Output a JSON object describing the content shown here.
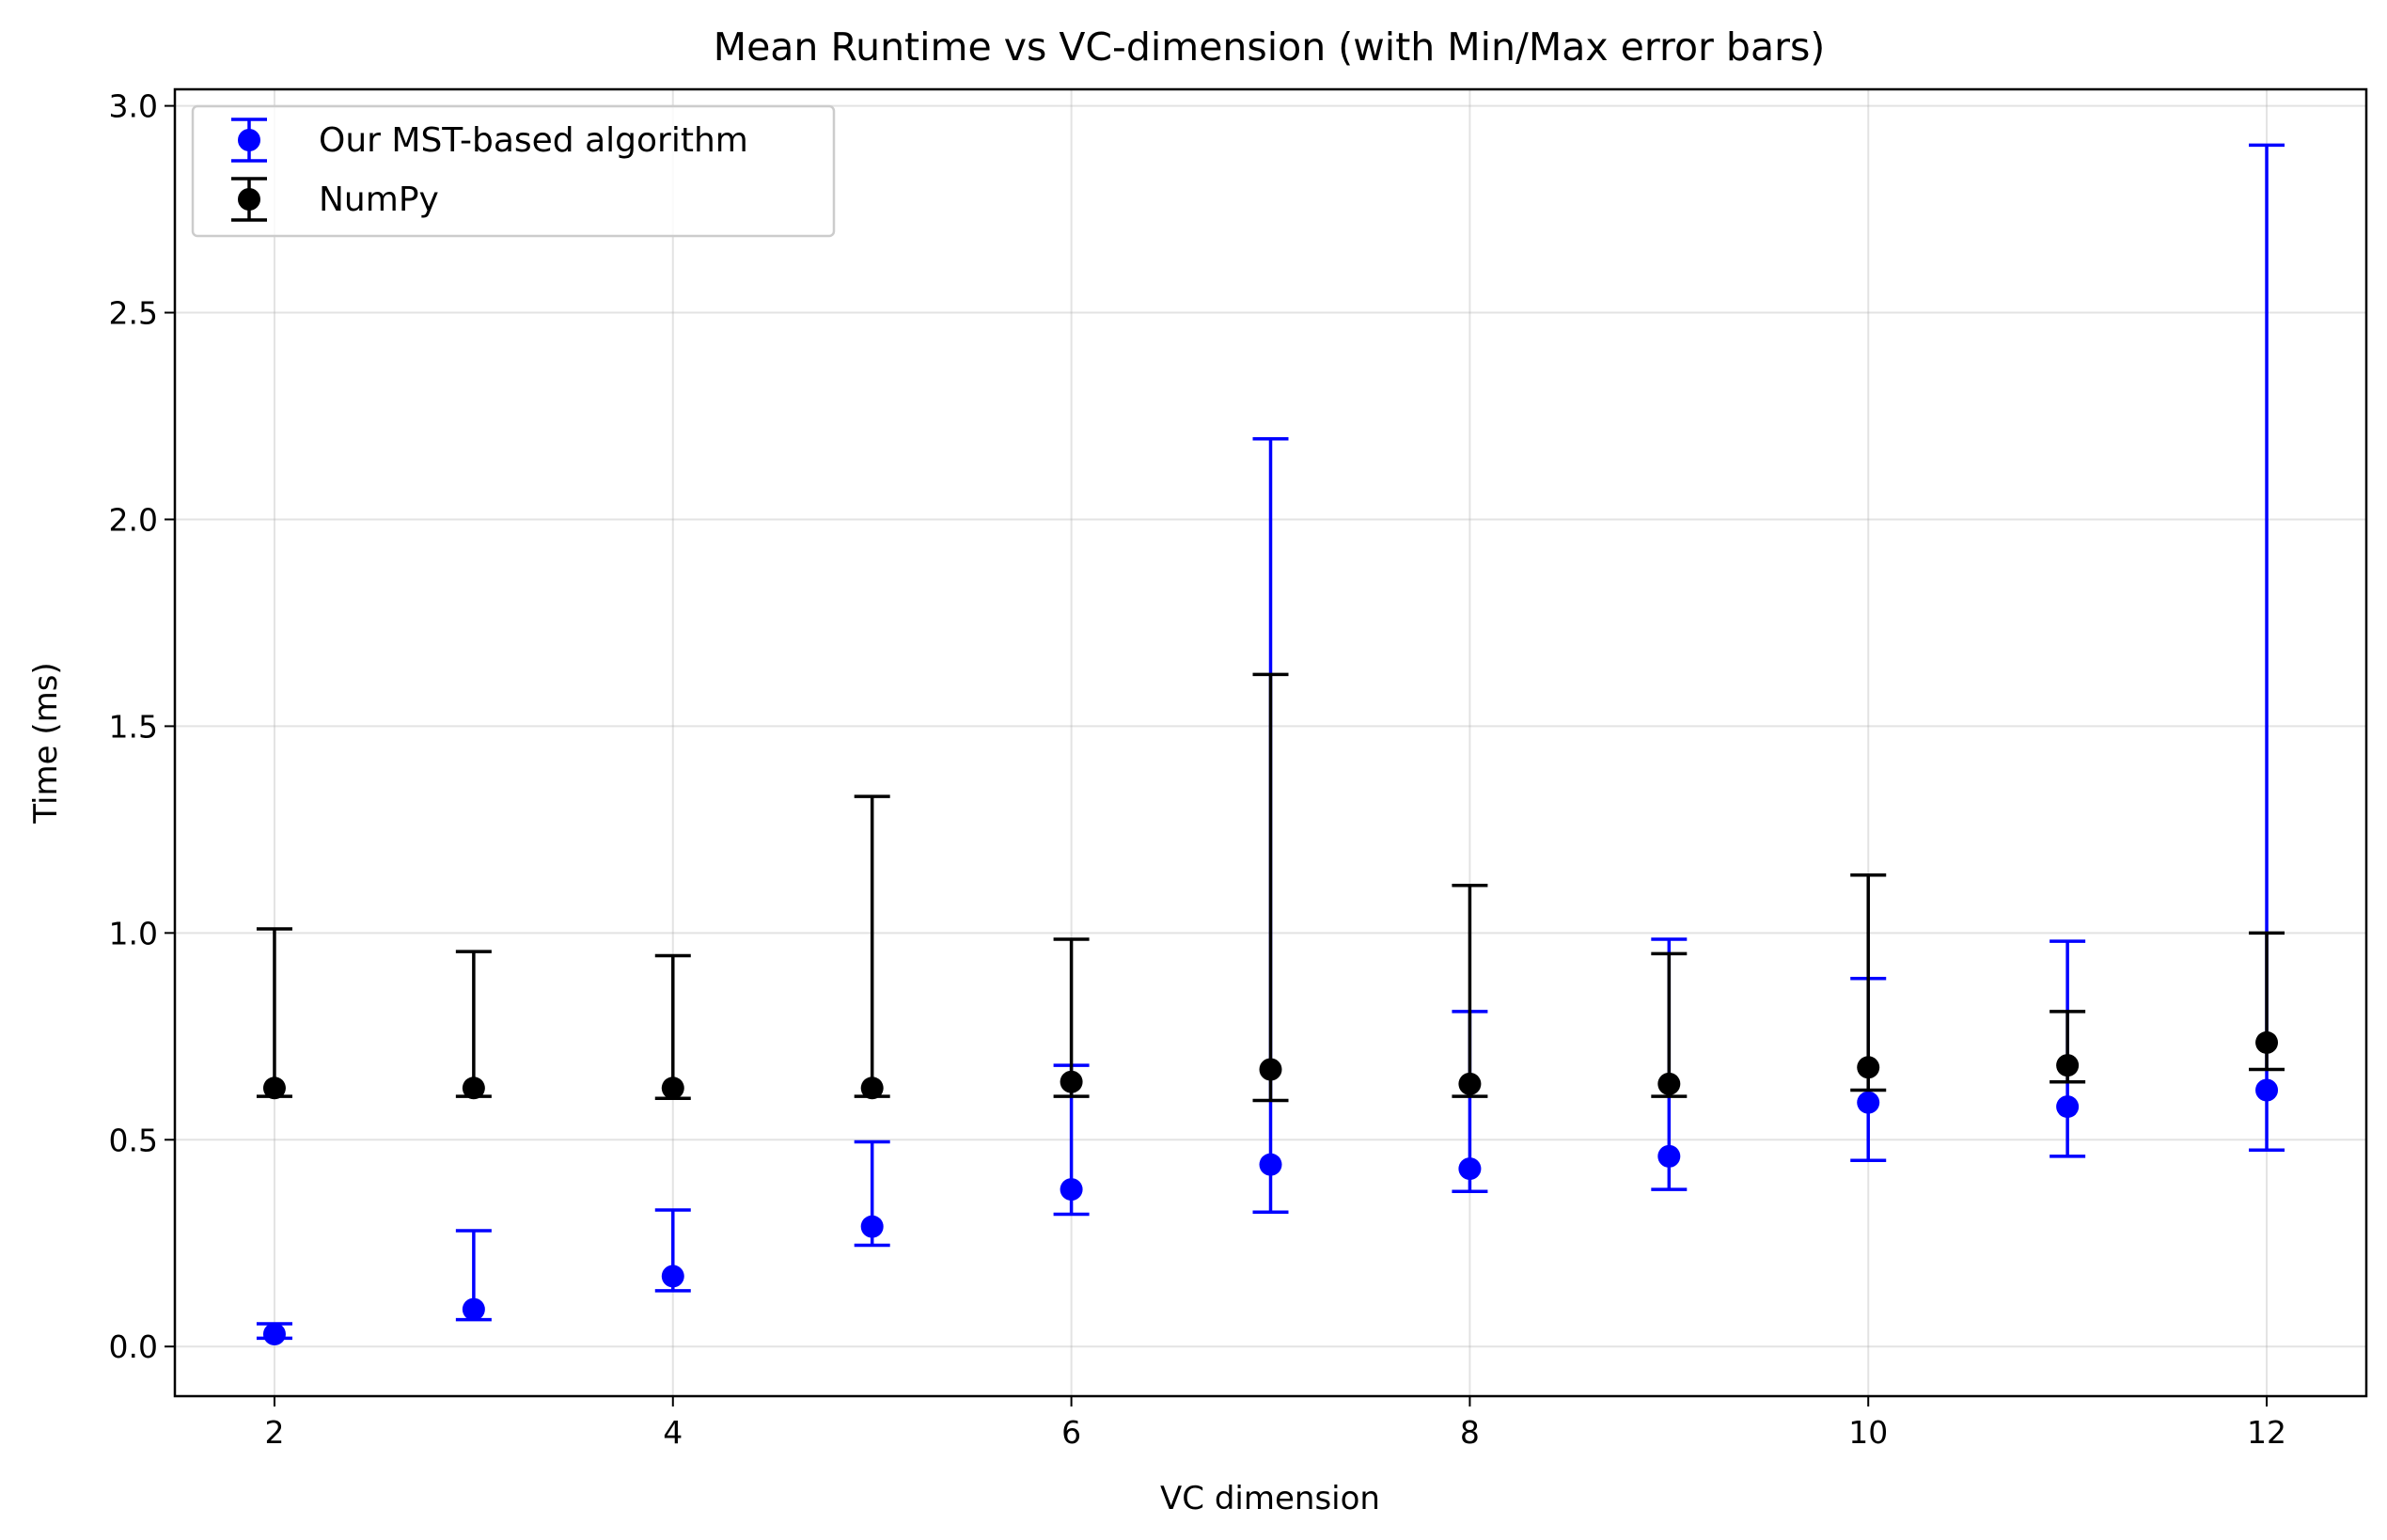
{
  "chart_data": {
    "type": "scatter",
    "title": "Mean Runtime vs VC-dimension (with Min/Max error bars)",
    "xlabel": "VC dimension",
    "ylabel": "Time (ms)",
    "xlim": [
      1.5,
      12.5
    ],
    "ylim": [
      -0.12,
      3.04
    ],
    "xticks": [
      "2",
      "4",
      "6",
      "8",
      "10",
      "12"
    ],
    "yticks": [
      "0.0",
      "0.5",
      "1.0",
      "1.5",
      "2.0",
      "2.5",
      "3.0"
    ],
    "grid": true,
    "legend_position": "top-left",
    "series": [
      {
        "name": "Our MST-based algorithm",
        "color": "#0000ff",
        "x": [
          2,
          3,
          4,
          5,
          6,
          7,
          8,
          9,
          10,
          11,
          12
        ],
        "mean": [
          0.03,
          0.09,
          0.17,
          0.29,
          0.38,
          0.44,
          0.43,
          0.46,
          0.59,
          0.58,
          0.62
        ],
        "min": [
          0.02,
          0.065,
          0.135,
          0.245,
          0.32,
          0.325,
          0.375,
          0.38,
          0.45,
          0.46,
          0.475
        ],
        "max": [
          0.055,
          0.28,
          0.33,
          0.495,
          0.68,
          2.195,
          0.81,
          0.985,
          0.89,
          0.98,
          2.905
        ]
      },
      {
        "name": "NumPy",
        "color": "#000000",
        "x": [
          2,
          3,
          4,
          5,
          6,
          7,
          8,
          9,
          10,
          11,
          12
        ],
        "mean": [
          0.625,
          0.625,
          0.625,
          0.625,
          0.64,
          0.67,
          0.635,
          0.635,
          0.675,
          0.68,
          0.735
        ],
        "min": [
          0.605,
          0.605,
          0.6,
          0.605,
          0.605,
          0.595,
          0.605,
          0.605,
          0.62,
          0.64,
          0.67
        ],
        "max": [
          1.01,
          0.955,
          0.945,
          1.33,
          0.985,
          1.625,
          1.115,
          0.95,
          1.14,
          0.81,
          1.0
        ]
      }
    ]
  }
}
